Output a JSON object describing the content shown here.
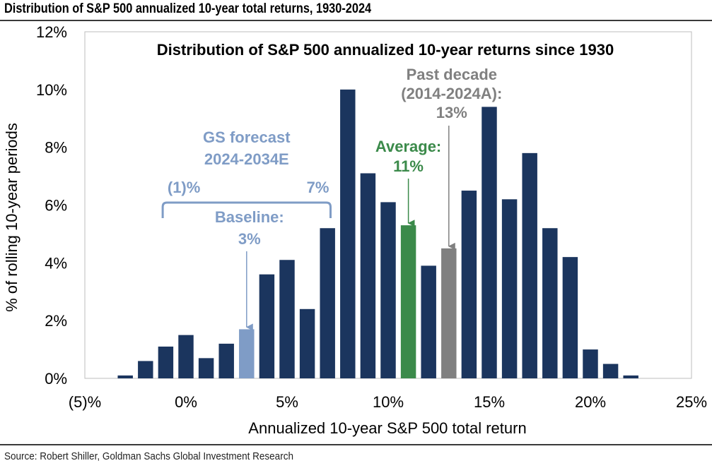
{
  "figure_title": "Distribution of S&P 500 annualized 10-year total returns, 1930-2024",
  "source": "Source: Robert Shiller, Goldman Sachs Global Investment Research",
  "colors": {
    "bar": "#1b355e",
    "forecast": "#7f9cc6",
    "average": "#3b8a4a",
    "past_decade": "#808080"
  },
  "chart_data": {
    "type": "bar",
    "title": "Distribution of S&P 500 annualized 10-year returns since 1930",
    "xlabel": "Annualized 10-year S&P 500 total return",
    "ylabel": "% of rolling 10-year periods",
    "xlim": [
      -5,
      25
    ],
    "ylim": [
      0,
      12
    ],
    "x_ticks": [
      "(5)%",
      "0%",
      "5%",
      "10%",
      "15%",
      "20%",
      "25%"
    ],
    "x_tick_values": [
      -5,
      0,
      5,
      10,
      15,
      20,
      25
    ],
    "y_ticks": [
      "0%",
      "2%",
      "4%",
      "6%",
      "8%",
      "10%",
      "12%"
    ],
    "y_tick_values": [
      0,
      2,
      4,
      6,
      8,
      10,
      12
    ],
    "grid": false,
    "bars": [
      {
        "x": -3,
        "value": 0.1,
        "highlight": "none"
      },
      {
        "x": -2,
        "value": 0.6,
        "highlight": "none"
      },
      {
        "x": -1,
        "value": 1.1,
        "highlight": "none"
      },
      {
        "x": 0,
        "value": 1.5,
        "highlight": "none"
      },
      {
        "x": 1,
        "value": 0.7,
        "highlight": "none"
      },
      {
        "x": 2,
        "value": 1.2,
        "highlight": "none"
      },
      {
        "x": 3,
        "value": 1.7,
        "highlight": "forecast"
      },
      {
        "x": 4,
        "value": 3.6,
        "highlight": "none"
      },
      {
        "x": 5,
        "value": 4.1,
        "highlight": "none"
      },
      {
        "x": 6,
        "value": 2.4,
        "highlight": "none"
      },
      {
        "x": 7,
        "value": 5.2,
        "highlight": "none"
      },
      {
        "x": 8,
        "value": 10.0,
        "highlight": "none"
      },
      {
        "x": 9,
        "value": 7.1,
        "highlight": "none"
      },
      {
        "x": 10,
        "value": 6.1,
        "highlight": "none"
      },
      {
        "x": 11,
        "value": 5.3,
        "highlight": "average"
      },
      {
        "x": 12,
        "value": 3.9,
        "highlight": "none"
      },
      {
        "x": 13,
        "value": 4.5,
        "highlight": "past_decade"
      },
      {
        "x": 14,
        "value": 6.5,
        "highlight": "none"
      },
      {
        "x": 15,
        "value": 9.4,
        "highlight": "none"
      },
      {
        "x": 16,
        "value": 6.2,
        "highlight": "none"
      },
      {
        "x": 17,
        "value": 7.8,
        "highlight": "none"
      },
      {
        "x": 18,
        "value": 5.2,
        "highlight": "none"
      },
      {
        "x": 19,
        "value": 4.2,
        "highlight": "none"
      },
      {
        "x": 20,
        "value": 1.0,
        "highlight": "none"
      },
      {
        "x": 21,
        "value": 0.5,
        "highlight": "none"
      },
      {
        "x": 22,
        "value": 0.1,
        "highlight": "none"
      }
    ],
    "annotations": {
      "forecast_title": [
        "GS forecast",
        "2024-2034E"
      ],
      "forecast_range_low_label": "(1)%",
      "forecast_range_high_label": "7%",
      "forecast_range": [
        -1,
        7
      ],
      "baseline_label": [
        "Baseline:",
        "3%"
      ],
      "baseline_value": 3,
      "average_label": [
        "Average:",
        "11%"
      ],
      "average_value": 11,
      "past_decade_label": [
        "Past decade",
        "(2014-2024A):",
        "13%"
      ],
      "past_decade_value": 13
    }
  }
}
